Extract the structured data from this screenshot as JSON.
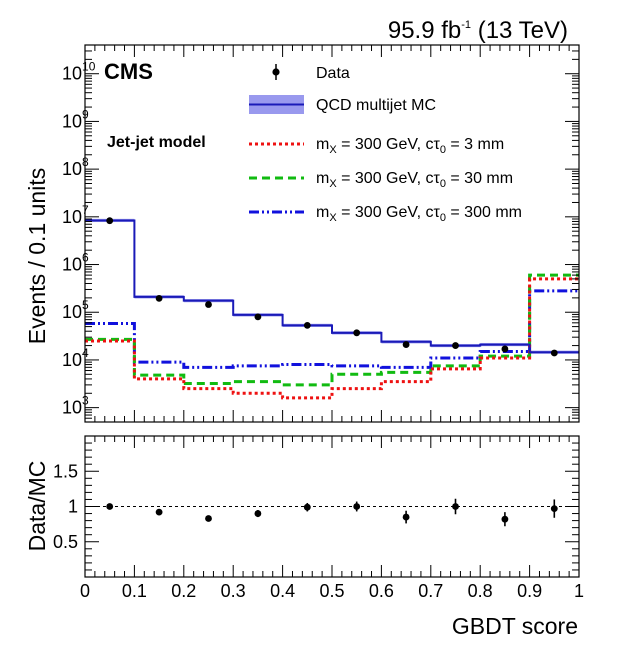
{
  "header": {
    "luminosity_label": "95.9 fb",
    "luminosity_exponent": "-1",
    "energy_label": "(13 TeV)"
  },
  "annotations": {
    "experiment": "CMS",
    "model": "Jet-jet model"
  },
  "colors": {
    "data": "#000000",
    "qcd_line": "#1a1ab8",
    "qcd_band": "#9999ee",
    "sig_3mm": "#ee1111",
    "sig_30mm": "#11bb11",
    "sig_300mm": "#1111dd"
  },
  "chart_data": [
    {
      "type": "histogram",
      "title": "",
      "xlabel": "",
      "ylabel": "Events / 0.1 units",
      "yscale": "log",
      "ylim": [
        500,
        40000000000
      ],
      "xlim": [
        0,
        1
      ],
      "bin_edges": [
        0,
        0.1,
        0.2,
        0.3,
        0.4,
        0.5,
        0.6,
        0.7,
        0.8,
        0.9,
        1.0
      ],
      "y_ticks": [
        {
          "base": "10",
          "exp": "3",
          "value": 1000
        },
        {
          "base": "10",
          "exp": "4",
          "value": 10000
        },
        {
          "base": "10",
          "exp": "5",
          "value": 100000
        },
        {
          "base": "10",
          "exp": "6",
          "value": 1000000
        },
        {
          "base": "10",
          "exp": "7",
          "value": 10000000
        },
        {
          "base": "10",
          "exp": "8",
          "value": 100000000
        },
        {
          "base": "10",
          "exp": "9",
          "value": 1000000000
        },
        {
          "base": "10",
          "exp": "10",
          "value": 10000000000
        }
      ],
      "series": [
        {
          "key": "data",
          "name": "Data",
          "style": "points",
          "values": [
            8300000,
            195000,
            145000,
            80000,
            53000,
            37000,
            21000,
            20000,
            17000,
            14000
          ]
        },
        {
          "key": "qcd",
          "name": "QCD multijet MC",
          "style": "hist-band",
          "values": [
            8400000,
            210000,
            175000,
            88000,
            53000,
            37000,
            24000,
            20000,
            21000,
            14500
          ]
        },
        {
          "key": "sig3",
          "name_prefix": "m",
          "name_sub": "X",
          "name_mid": " = 300 GeV, cτ",
          "name_sub2": "0",
          "name_suffix": " = 3 mm",
          "style": "dotted",
          "values": [
            25000,
            4000,
            2500,
            2000,
            1600,
            2500,
            3500,
            6500,
            11000,
            500000
          ]
        },
        {
          "key": "sig30",
          "name_prefix": "m",
          "name_sub": "X",
          "name_mid": " = 300 GeV, cτ",
          "name_sub2": "0",
          "name_suffix": " = 30 mm",
          "style": "dashed",
          "values": [
            27000,
            4800,
            3200,
            3500,
            3000,
            5000,
            5500,
            7500,
            12000,
            600000
          ]
        },
        {
          "key": "sig300",
          "name_prefix": "m",
          "name_sub": "X",
          "name_mid": " = 300 GeV, cτ",
          "name_sub2": "0",
          "name_suffix": " = 300 mm",
          "style": "dashdot",
          "values": [
            58000,
            9000,
            7000,
            7500,
            8000,
            7500,
            7000,
            11000,
            15000,
            280000
          ]
        }
      ],
      "legend_position": "top-right"
    },
    {
      "type": "scatter",
      "xlabel": "GBDT score",
      "ylabel": "Data/MC",
      "xlim": [
        0,
        1
      ],
      "ylim": [
        0,
        2
      ],
      "x_ticks": [
        "0",
        "0.1",
        "0.2",
        "0.3",
        "0.4",
        "0.5",
        "0.6",
        "0.7",
        "0.8",
        "0.9",
        "1"
      ],
      "y_ticks": [
        "0.5",
        "1",
        "1.5"
      ],
      "reference_line": 1,
      "x": [
        0.05,
        0.15,
        0.25,
        0.35,
        0.45,
        0.55,
        0.65,
        0.75,
        0.85,
        0.95
      ],
      "values": [
        1.0,
        0.92,
        0.83,
        0.9,
        0.99,
        1.0,
        0.85,
        1.0,
        0.82,
        0.97
      ],
      "errors": [
        0.01,
        0.02,
        0.03,
        0.05,
        0.06,
        0.07,
        0.09,
        0.11,
        0.1,
        0.13
      ]
    }
  ]
}
